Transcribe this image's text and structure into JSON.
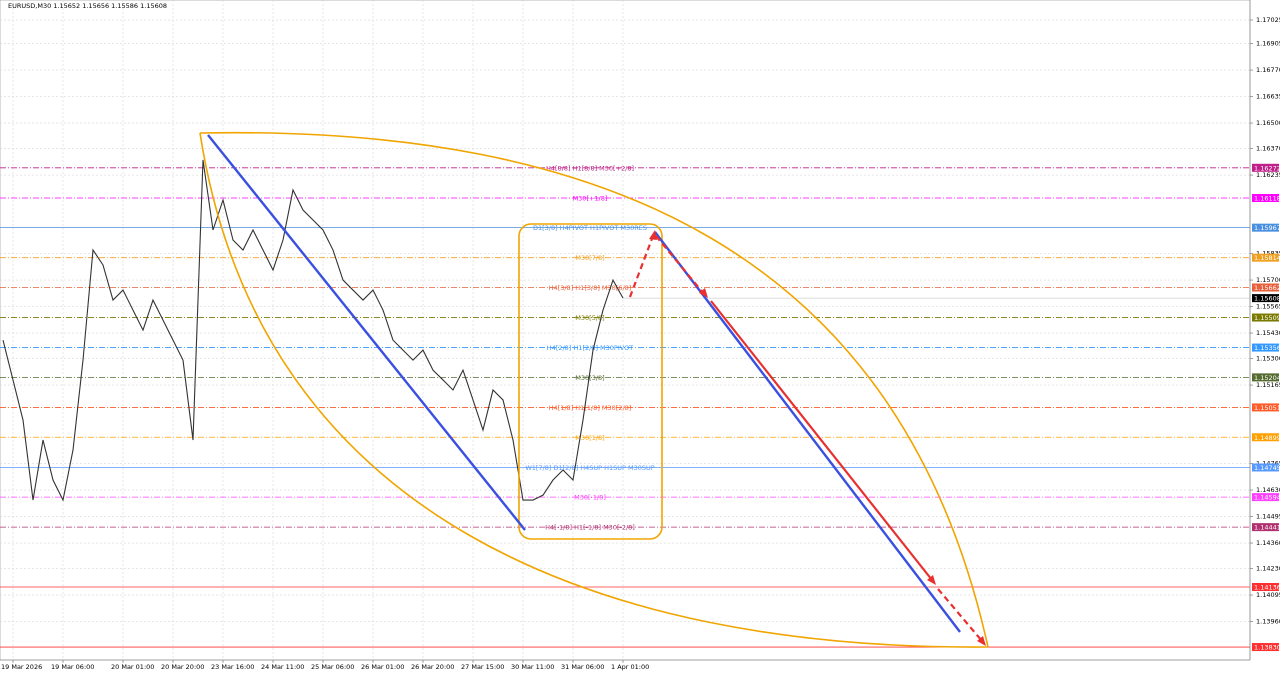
{
  "chart_data": {
    "type": "line",
    "title": "EURUSD,M30  1.15652 1.15656 1.15586 1.15608",
    "categories": [
      null,
      "19 Mar 2026",
      null,
      null,
      null,
      null,
      "19 Mar 06:00",
      null,
      null,
      null,
      null,
      null,
      "20 Mar 01:00",
      null,
      null,
      null,
      null,
      "20 Mar 20:00",
      null,
      null,
      null,
      null,
      "23 Mar 16:00",
      null,
      null,
      null,
      null,
      "24 Mar 11:00",
      null,
      null,
      null,
      null,
      "25 Mar 06:00",
      null,
      null,
      null,
      null,
      "26 Mar 01:00",
      null,
      null,
      null,
      null,
      "26 Mar 20:00",
      null,
      null,
      null,
      null,
      "27 Mar 15:00",
      null,
      null,
      null,
      null,
      "30 Mar 11:00",
      null,
      null,
      null,
      null,
      "31 Mar 06:00",
      null,
      null,
      null,
      null,
      "1 Apr 01:00"
    ],
    "series": [
      {
        "name": "EURUSD,M30",
        "color": "#333333",
        "values": [
          1.15394,
          1.15191,
          1.14987,
          1.14579,
          1.14885,
          1.14681,
          1.14579,
          1.14834,
          1.15292,
          1.15853,
          1.15777,
          1.15598,
          1.15649,
          1.15547,
          1.15445,
          1.15598,
          1.15496,
          1.15394,
          1.15292,
          1.14885,
          1.16312,
          1.15955,
          1.16108,
          1.15904,
          1.15853,
          1.15955,
          1.15853,
          1.15751,
          1.15904,
          1.16159,
          1.16057,
          1.16006,
          1.15955,
          1.15853,
          1.157,
          1.15649,
          1.15598,
          1.15649,
          1.15547,
          1.15394,
          1.15343,
          1.15292,
          1.15343,
          1.15241,
          1.15191,
          1.1514,
          1.15241,
          1.15089,
          1.14936,
          1.1514,
          1.15089,
          1.14885,
          1.14579,
          1.14579,
          1.14604,
          1.14681,
          1.14732,
          1.14681,
          1.14987,
          1.15343,
          1.15547,
          1.157,
          1.15608
        ]
      }
    ],
    "ylim": [
      1.13764,
      1.17127
    ],
    "yticks": [
      1.17025,
      1.16905,
      {
        "value": 1.1677,
        "label": "1.16770"
      },
      1.16635,
      {
        "value": 1.165,
        "label": "1.16500"
      },
      {
        "value": 1.1637,
        "label": "1.16370"
      },
      1.16235,
      1.15835,
      {
        "value": 1.157,
        "label": "1.15700"
      },
      1.15565,
      {
        "value": 1.1543,
        "label": "1.15430"
      },
      {
        "value": 1.153,
        "label": "1.15300"
      },
      1.15165,
      1.14765,
      {
        "value": 1.1463,
        "label": "1.14630"
      },
      1.14495,
      {
        "value": 1.1436,
        "label": "1.14360"
      },
      {
        "value": 1.1423,
        "label": "1.14230"
      },
      1.14095,
      {
        "value": 1.1396,
        "label": "1.13960"
      }
    ],
    "grid": true,
    "levels": [
      {
        "name": "H4[8/8] H1[8/8] M30[+2/8]",
        "value": 1.16272,
        "color": "#c0208a",
        "line_style": "dashdot"
      },
      {
        "name": "M30[+1/8]",
        "value": 1.16118,
        "color": "#ff00ff",
        "line_style": "dashdot"
      },
      {
        "name": "D1[3/8] H4PIVOT H1PIVOT M30RES",
        "value": 1.15967,
        "color": "#4a8fe0",
        "line_style": "solid"
      },
      {
        "name": "M30[7/8]",
        "value": 1.15814,
        "color": "#f0a020",
        "line_style": "dashdot"
      },
      {
        "name": "H4[3/8] H1[3/8] M30[6/8]",
        "value": 1.15662,
        "color": "#e8603a",
        "line_style": "dashdot"
      },
      {
        "name": "M30[5/8]",
        "value": 1.15509,
        "color": "#7a7a00",
        "line_style": "dashdot"
      },
      {
        "name": "H4[2/8] H1[2/8] M30PIVOT",
        "value": 1.15356,
        "color": "#3399ff",
        "line_style": "dashdot"
      },
      {
        "name": "M30[3/8]",
        "value": 1.15204,
        "color": "#556b2f",
        "line_style": "dashdot"
      },
      {
        "name": "H4[1/8] H1[1/8] M30[2/8]",
        "value": 1.15051,
        "color": "#ff5a28",
        "line_style": "dashdot"
      },
      {
        "name": "M30[1/8]",
        "value": 1.14899,
        "color": "#ffa000",
        "line_style": "dashdot"
      },
      {
        "name": "W1[7/8] D1[2/8] H4SUP H1SUP M30SUP",
        "value": 1.14745,
        "color": "#5599ff",
        "line_style": "solid"
      },
      {
        "name": "M30[-1/8]",
        "value": 1.14594,
        "color": "#ff40ff",
        "line_style": "dashdot"
      },
      {
        "name": "H4[-1/8] H1[-1/8] M30[-2/8]",
        "value": 1.14441,
        "color": "#b03070",
        "line_style": "dashdot"
      },
      {
        "value": 1.14136,
        "color": "#ff3030",
        "line_style": "solid"
      },
      {
        "value": 1.1383,
        "value_label": "1.13830",
        "color": "#ff3030",
        "line_style": "solid"
      }
    ]
  }
}
